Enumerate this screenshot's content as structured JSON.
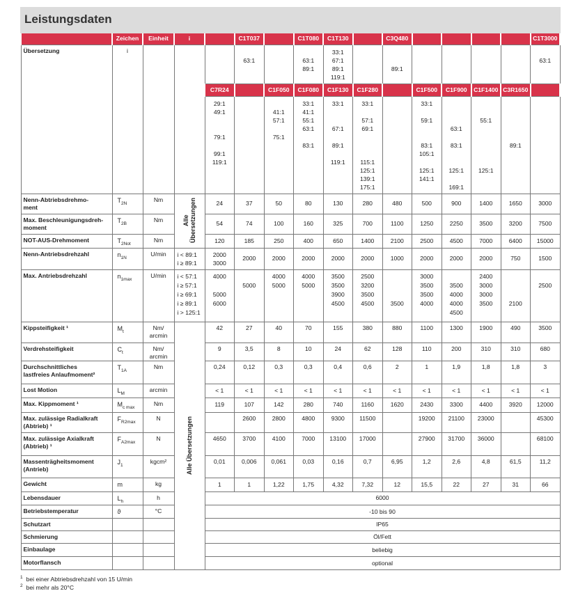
{
  "title": "Leistungsdaten",
  "colors": {
    "accent": "#d8334a",
    "titlebar": "#dcdcdc"
  },
  "header": {
    "zeichen": "Zeichen",
    "einheit": "Einheit",
    "i": "i"
  },
  "models_top": [
    "",
    "C1T037",
    "",
    "C1T080",
    "C1T130",
    "",
    "C3Q480",
    "",
    "",
    "",
    "",
    "C1T3000"
  ],
  "models_bottom": [
    "C7R24",
    "",
    "C1F050",
    "C1F080",
    "C1F130",
    "C1F280",
    "",
    "C1F500",
    "C1F900",
    "C1F1400",
    "C3R1650",
    ""
  ],
  "uebersetzung": {
    "label": "Übersetzung",
    "symbol": "i",
    "top_ratios": [
      [],
      [
        "",
        "63:1"
      ],
      [],
      [
        "",
        "63:1",
        "89:1"
      ],
      [
        "33:1",
        "67:1",
        "89:1",
        "119:1"
      ],
      [],
      [
        "",
        "",
        "89:1"
      ],
      [],
      [],
      [],
      [],
      [
        "",
        "63:1"
      ]
    ],
    "bottom_ratios": [
      [
        "29:1",
        "49:1",
        "",
        "",
        "79:1",
        "",
        "99:1",
        "119:1"
      ],
      [],
      [
        "",
        "41:1",
        "57:1",
        "",
        "75:1"
      ],
      [
        "33:1",
        "41:1",
        "55:1",
        "63:1",
        "",
        "83:1"
      ],
      [
        "33:1",
        "",
        "",
        "67:1",
        "",
        "89:1",
        "",
        "119:1"
      ],
      [
        "33:1",
        "",
        "57:1",
        "69:1",
        "",
        "",
        "",
        "115:1",
        "125:1",
        "139:1",
        "175:1"
      ],
      [],
      [
        "33:1",
        "",
        "59:1",
        "",
        "",
        "83:1",
        "105:1",
        "",
        "125:1",
        "141:1"
      ],
      [
        "",
        "",
        "",
        "63:1",
        "",
        "83:1",
        "",
        "",
        "125:1",
        "",
        "169:1"
      ],
      [
        "",
        "",
        "55:1",
        "",
        "",
        "",
        "",
        "",
        "125:1"
      ],
      [
        "",
        "",
        "",
        "",
        "",
        "89:1"
      ],
      []
    ]
  },
  "alle_uebersetzungen_short": "Alle\nÜbersetzungen",
  "alle_uebersetzungen": "Alle Übersetzungen",
  "rows": [
    {
      "label": "Nenn-Abtriebsdrehmo-\nment",
      "sym": "T",
      "sub": "2N",
      "unit": "Nm",
      "values": [
        "24",
        "37",
        "50",
        "80",
        "130",
        "280",
        "480",
        "500",
        "900",
        "1400",
        "1650",
        "3000"
      ]
    },
    {
      "label": "Max. Beschleunigungsdreh-\nmoment",
      "sym": "T",
      "sub": "2B",
      "unit": "Nm",
      "values": [
        "54",
        "74",
        "100",
        "160",
        "325",
        "700",
        "1100",
        "1250",
        "2250",
        "3500",
        "3200",
        "7500"
      ]
    },
    {
      "label": "NOT-AUS-Drehmoment",
      "sym": "T",
      "sub": "2Not",
      "unit": "Nm",
      "values": [
        "120",
        "185",
        "250",
        "400",
        "650",
        "1400",
        "2100",
        "2500",
        "4500",
        "7000",
        "6400",
        "15000"
      ]
    },
    {
      "label": "Nenn-Antriebsdrehzahl",
      "sym": "n",
      "sub": "1N",
      "unit": "U/min",
      "cond": [
        "i < 89:1",
        "i ≥ 89:1"
      ],
      "values": [
        [
          "2000",
          "3000"
        ],
        "2000",
        "2000",
        "2000",
        "2000",
        "2000",
        "1000",
        "2000",
        "2000",
        "2000",
        "750",
        "1500"
      ]
    },
    {
      "label": "Max. Antriebsdrehzahl",
      "sym": "n",
      "sub": "1max",
      "unit": "U/min",
      "cond": [
        "i < 57:1",
        "i ≥ 57:1",
        "i ≥ 69:1",
        "i ≥ 89:1",
        "i > 125:1"
      ],
      "values": [
        [
          "4000",
          "",
          "5000",
          "6000"
        ],
        [
          "",
          "5000"
        ],
        [
          "4000",
          "5000"
        ],
        [
          "4000",
          "5000"
        ],
        [
          "3500",
          "3500",
          "3900",
          "4500"
        ],
        [
          "2500",
          "3200",
          "3500",
          "4500"
        ],
        [
          "",
          "",
          "",
          "3500"
        ],
        [
          "3000",
          "3500",
          "3500",
          "4000"
        ],
        [
          "",
          "3500",
          "4000",
          "4000",
          "4500"
        ],
        [
          "2400",
          "3000",
          "3000",
          "3500"
        ],
        [
          "",
          "",
          "",
          "2100"
        ],
        [
          "",
          "2500"
        ]
      ]
    },
    {
      "label": "Kippsteifigkeit ¹",
      "sym": "M",
      "sub": "t",
      "unit": "Nm/\narcmin",
      "top": true,
      "values": [
        "42",
        "27",
        "40",
        "70",
        "155",
        "380",
        "880",
        "1100",
        "1300",
        "1900",
        "490",
        "3500"
      ]
    },
    {
      "label": "Verdrehsteifigkeit",
      "sym": "C",
      "sub": "t",
      "unit": "Nm/\narcmin",
      "top": true,
      "values": [
        "9",
        "3,5",
        "8",
        "10",
        "24",
        "62",
        "128",
        "110",
        "200",
        "310",
        "310",
        "680"
      ]
    },
    {
      "label": "Durchschnittliches\nlastfreies Anlaufmoment²",
      "sym": "T",
      "sub": "1A",
      "unit": "Nm",
      "top": true,
      "values": [
        "0,24",
        "0,12",
        "0,3",
        "0,3",
        "0,4",
        "0,6",
        "2",
        "1",
        "1,9",
        "1,8",
        "1,8",
        "3"
      ]
    },
    {
      "label": "Lost Motion",
      "sym": "L",
      "sub": "M",
      "unit": "arcmin",
      "values": [
        "< 1",
        "< 1",
        "< 1",
        "< 1",
        "< 1",
        "< 1",
        "< 1",
        "< 1",
        "< 1",
        "< 1",
        "< 1",
        "< 1"
      ]
    },
    {
      "label": "Max. Kippmoment ¹",
      "sym": "M",
      "sub": "c max",
      "unit": "Nm",
      "values": [
        "119",
        "107",
        "142",
        "280",
        "740",
        "1160",
        "1620",
        "2430",
        "3300",
        "4400",
        "3920",
        "12000"
      ]
    },
    {
      "label": "Max. zulässige Radialkraft\n(Abtrieb) ¹",
      "sym": "F",
      "sub": "R2max",
      "unit": "N",
      "top": true,
      "values": [
        "",
        "2600",
        "2800",
        "4800",
        "9300",
        "11500",
        "",
        "19200",
        "21100",
        "23000",
        "",
        "45300"
      ]
    },
    {
      "label": "Max. zulässige Axialkraft\n(Abtrieb) ¹",
      "sym": "F",
      "sub": "A2max",
      "unit": "N",
      "top": true,
      "values": [
        "4650",
        "3700",
        "4100",
        "7000",
        "13100",
        "17000",
        "",
        "27900",
        "31700",
        "36000",
        "",
        "68100"
      ]
    },
    {
      "label": "Massenträgheitsmoment\n(Antrieb)",
      "sym": "J",
      "sub": "1",
      "unit": "kgcm²",
      "top": true,
      "values": [
        "0,01",
        "0,006",
        "0,061",
        "0,03",
        "0,16",
        "0,7",
        "6,95",
        "1,2",
        "2,6",
        "4,8",
        "61,5",
        "11,2"
      ]
    },
    {
      "label": "Gewicht",
      "sym": "m",
      "sub": "",
      "unit": "kg",
      "values": [
        "1",
        "1",
        "1,22",
        "1,75",
        "4,32",
        "7,32",
        "12",
        "15,5",
        "22",
        "27",
        "31",
        "66"
      ]
    },
    {
      "label": "Lebensdauer",
      "sym": "L",
      "sub": "h",
      "unit": "h",
      "span": "6000"
    },
    {
      "label": "Betriebstemperatur",
      "sym": "ϑ",
      "sub": "",
      "unit": "°C",
      "span": "-10 bis 90"
    },
    {
      "label": "Schutzart",
      "sym": "",
      "sub": "",
      "unit": "",
      "span": "IP65"
    },
    {
      "label": "Schmierung",
      "sym": "",
      "sub": "",
      "unit": "",
      "span": "Öl/Fett"
    },
    {
      "label": "Einbaulage",
      "sym": "",
      "sub": "",
      "unit": "",
      "span": "beliebig"
    },
    {
      "label": "Motorflansch",
      "sym": "",
      "sub": "",
      "unit": "",
      "span": "optional"
    }
  ],
  "footnotes": [
    {
      "mark": "1",
      "text": "bei einer Abtriebsdrehzahl von 15 U/min"
    },
    {
      "mark": "2",
      "text": "bei mehr als 20°C"
    }
  ]
}
